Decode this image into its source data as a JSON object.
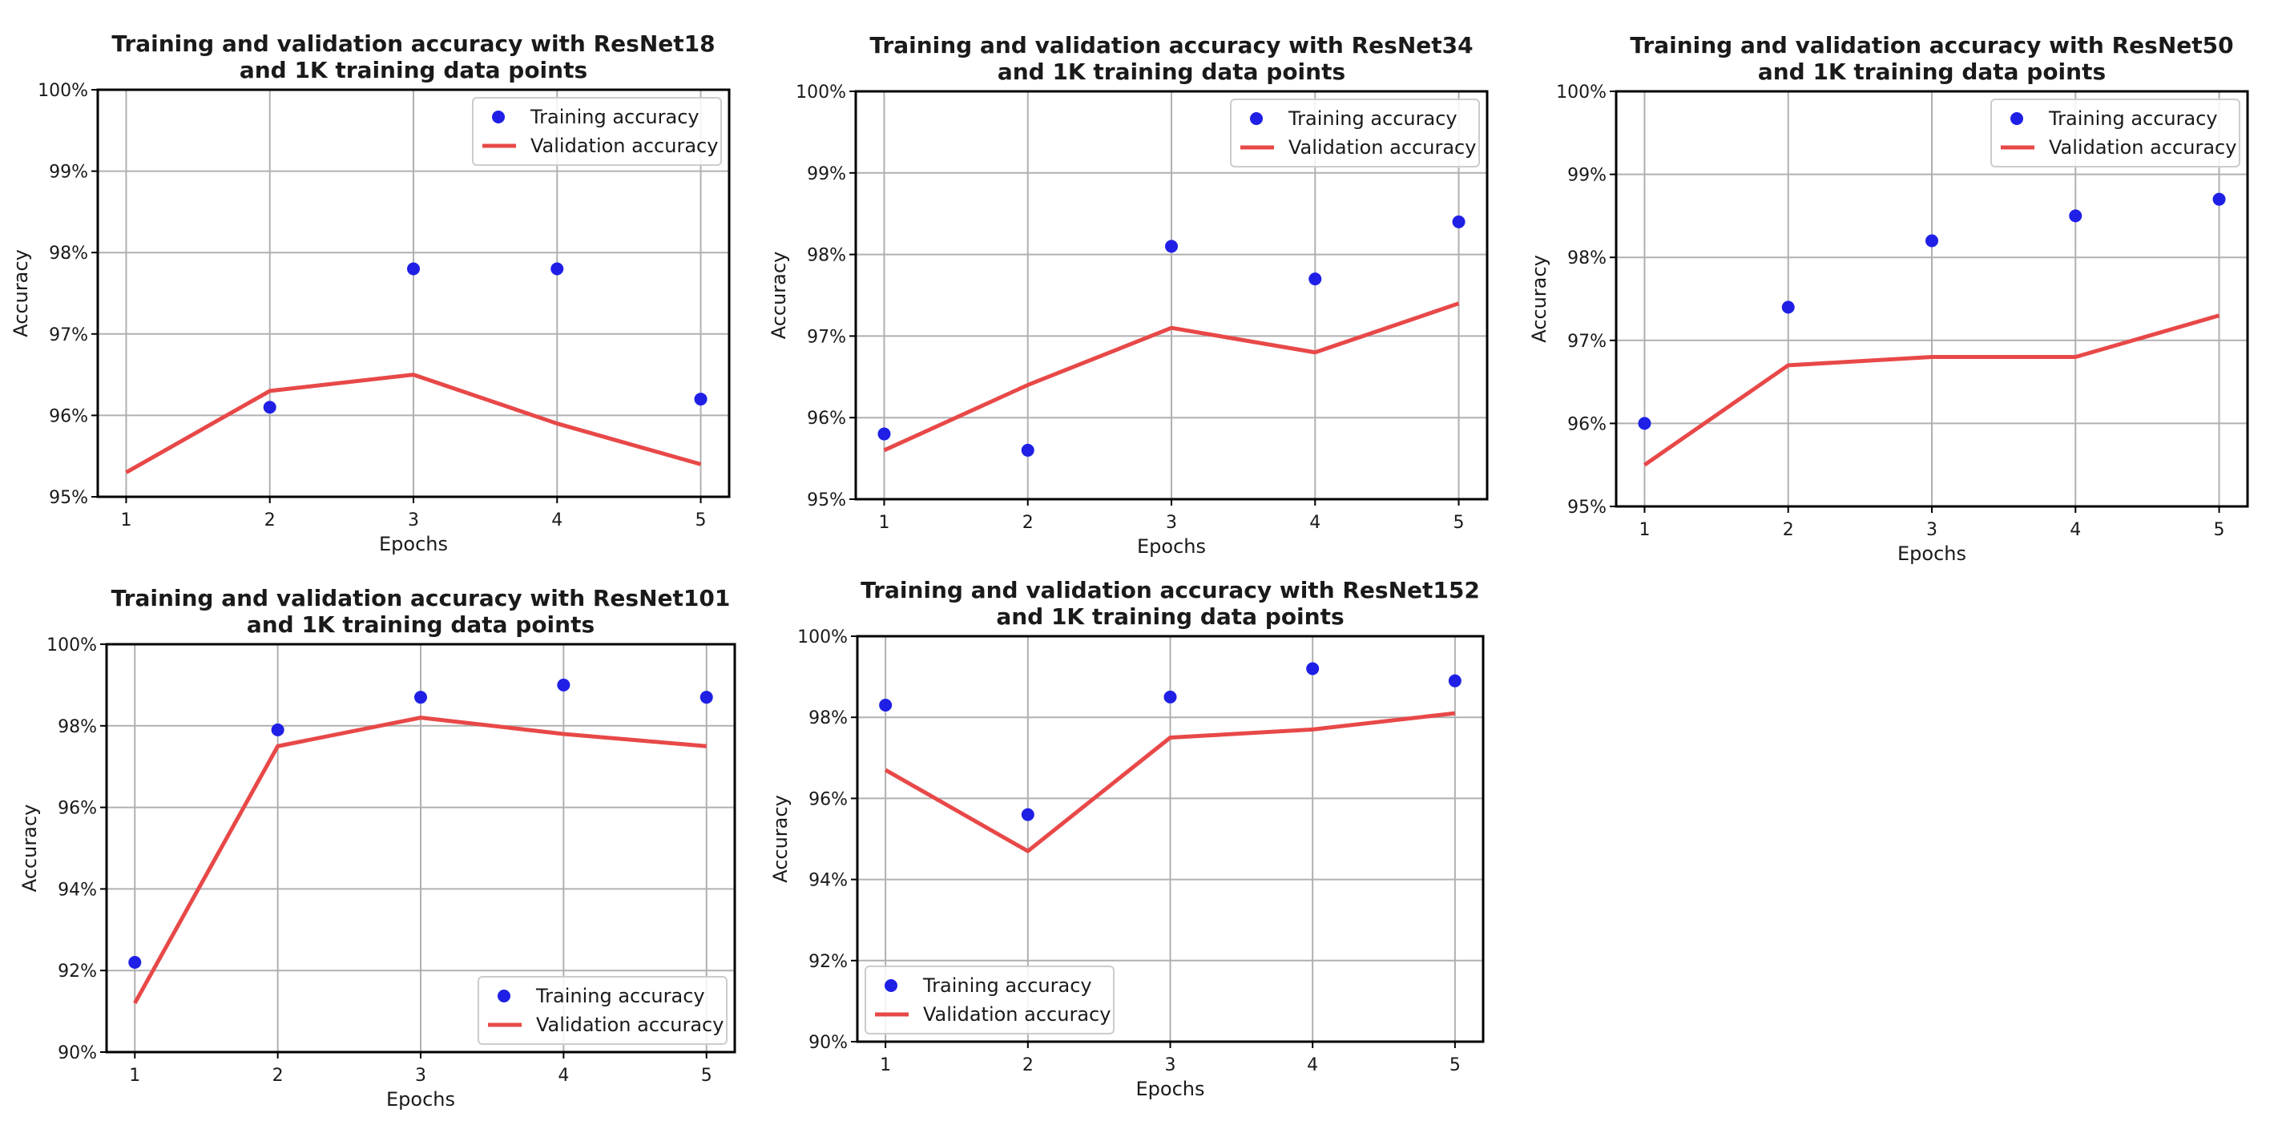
{
  "colors": {
    "training": "#1f1fe6",
    "validation": "#e84848",
    "grid": "#b0b0b0"
  },
  "chart_data": [
    {
      "type": "line",
      "title": [
        "Training and validation accuracy with ResNet18",
        "and 1K training data points"
      ],
      "xlabel": "Epochs",
      "ylabel": "Accuracy",
      "x": [
        1,
        2,
        3,
        4,
        5
      ],
      "xticks": [
        "1",
        "2",
        "3",
        "4",
        "5"
      ],
      "ylim": [
        95,
        100
      ],
      "yticks": [
        95,
        96,
        97,
        98,
        99,
        100
      ],
      "ytick_labels": [
        "95%",
        "96%",
        "97%",
        "98%",
        "99%",
        "100%"
      ],
      "grid": true,
      "legend_position": "top-right",
      "series": [
        {
          "name": "Training accuracy",
          "style": "scatter",
          "values": [
            null,
            96.1,
            97.8,
            97.8,
            96.2
          ]
        },
        {
          "name": "Validation accuracy",
          "style": "line",
          "values": [
            95.3,
            96.3,
            96.5,
            95.9,
            95.4
          ]
        }
      ]
    },
    {
      "type": "line",
      "title": [
        "Training and validation accuracy with ResNet34",
        "and 1K training data points"
      ],
      "xlabel": "Epochs",
      "ylabel": "Accuracy",
      "x": [
        1,
        2,
        3,
        4,
        5
      ],
      "xticks": [
        "1",
        "2",
        "3",
        "4",
        "5"
      ],
      "ylim": [
        95,
        100
      ],
      "yticks": [
        95,
        96,
        97,
        98,
        99,
        100
      ],
      "ytick_labels": [
        "95%",
        "96%",
        "97%",
        "98%",
        "99%",
        "100%"
      ],
      "grid": true,
      "legend_position": "top-right",
      "series": [
        {
          "name": "Training accuracy",
          "style": "scatter",
          "values": [
            95.8,
            95.6,
            98.1,
            97.7,
            98.4
          ]
        },
        {
          "name": "Validation accuracy",
          "style": "line",
          "values": [
            95.6,
            96.4,
            97.1,
            96.8,
            97.4
          ]
        }
      ]
    },
    {
      "type": "line",
      "title": [
        "Training and validation accuracy with ResNet50",
        "and 1K training data points"
      ],
      "xlabel": "Epochs",
      "ylabel": "Accuracy",
      "x": [
        1,
        2,
        3,
        4,
        5
      ],
      "xticks": [
        "1",
        "2",
        "3",
        "4",
        "5"
      ],
      "ylim": [
        95,
        100
      ],
      "yticks": [
        95,
        96,
        97,
        98,
        99,
        100
      ],
      "ytick_labels": [
        "95%",
        "96%",
        "97%",
        "98%",
        "99%",
        "100%"
      ],
      "grid": true,
      "legend_position": "top-right",
      "series": [
        {
          "name": "Training accuracy",
          "style": "scatter",
          "values": [
            96.0,
            97.4,
            98.2,
            98.5,
            98.7
          ]
        },
        {
          "name": "Validation accuracy",
          "style": "line",
          "values": [
            95.5,
            96.7,
            96.8,
            96.8,
            97.3
          ]
        }
      ]
    },
    {
      "type": "line",
      "title": [
        "Training and validation accuracy with ResNet101",
        "and 1K training data points"
      ],
      "xlabel": "Epochs",
      "ylabel": "Accuracy",
      "x": [
        1,
        2,
        3,
        4,
        5
      ],
      "xticks": [
        "1",
        "2",
        "3",
        "4",
        "5"
      ],
      "ylim": [
        90,
        100
      ],
      "yticks": [
        90,
        92,
        94,
        96,
        98,
        100
      ],
      "ytick_labels": [
        "90%",
        "92%",
        "94%",
        "96%",
        "98%",
        "100%"
      ],
      "grid": true,
      "legend_position": "bottom-right",
      "series": [
        {
          "name": "Training accuracy",
          "style": "scatter",
          "values": [
            92.2,
            97.9,
            98.7,
            99.0,
            98.7
          ]
        },
        {
          "name": "Validation accuracy",
          "style": "line",
          "values": [
            91.2,
            97.5,
            98.2,
            97.8,
            97.5
          ]
        }
      ]
    },
    {
      "type": "line",
      "title": [
        "Training and validation accuracy with ResNet152",
        "and 1K training data points"
      ],
      "xlabel": "Epochs",
      "ylabel": "Accuracy",
      "x": [
        1,
        2,
        3,
        4,
        5
      ],
      "xticks": [
        "1",
        "2",
        "3",
        "4",
        "5"
      ],
      "ylim": [
        90,
        100
      ],
      "yticks": [
        90,
        92,
        94,
        96,
        98,
        100
      ],
      "ytick_labels": [
        "90%",
        "92%",
        "94%",
        "96%",
        "98%",
        "100%"
      ],
      "grid": true,
      "legend_position": "bottom-left",
      "series": [
        {
          "name": "Training accuracy",
          "style": "scatter",
          "values": [
            98.3,
            95.6,
            98.5,
            99.2,
            98.9
          ]
        },
        {
          "name": "Validation accuracy",
          "style": "line",
          "values": [
            96.7,
            94.7,
            97.5,
            97.7,
            98.1
          ]
        }
      ]
    }
  ]
}
